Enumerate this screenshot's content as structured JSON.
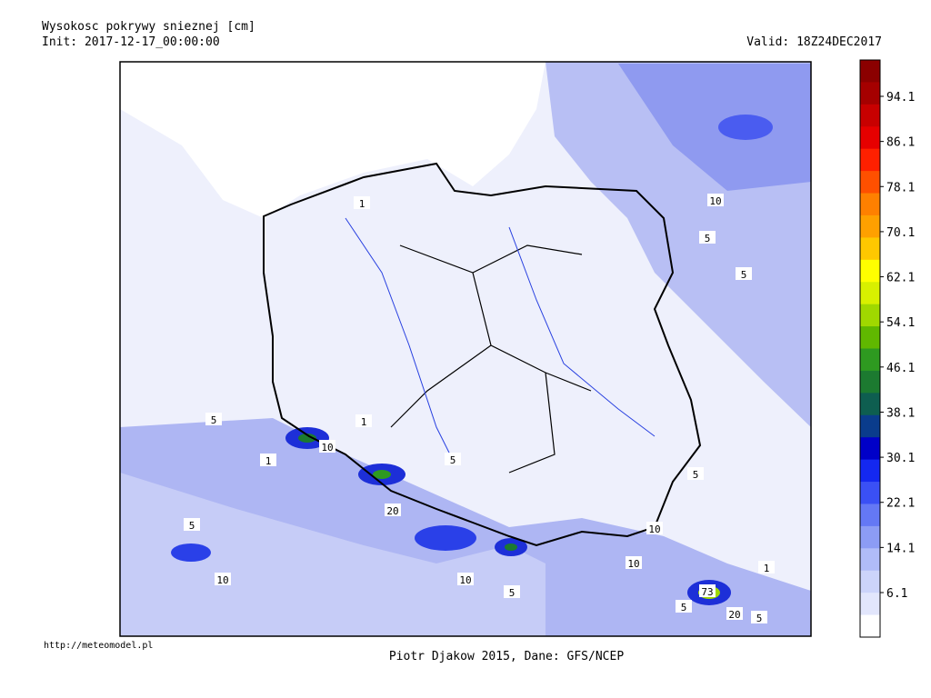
{
  "header": {
    "title": "Wysokosc pokrywy snieznej [cm]",
    "init": "Init: 2017-12-17_00:00:00",
    "valid": "Valid: 18Z24DEC2017"
  },
  "colorbar": {
    "ticks": [
      94.1,
      86.1,
      78.1,
      70.1,
      62.1,
      54.1,
      46.1,
      38.1,
      30.1,
      22.1,
      14.1,
      6.1
    ],
    "colors": [
      "#8b0000",
      "#a50000",
      "#c80000",
      "#e60000",
      "#ff2000",
      "#ff5000",
      "#ff8000",
      "#ffa000",
      "#ffc800",
      "#ffff00",
      "#d8f000",
      "#a0d800",
      "#60b800",
      "#2e9a20",
      "#1c7a30",
      "#0e5e50",
      "#0a3c8c",
      "#0000c8",
      "#1428f0",
      "#3a50f5",
      "#6478f5",
      "#8c9cf5",
      "#b0bcf8",
      "#ccd4fa",
      "#e2e6fc",
      "#ffffff"
    ]
  },
  "contour_labels": [
    "5",
    "5",
    "5",
    "5",
    "5",
    "5",
    "5",
    "5",
    "5",
    "10",
    "10",
    "10",
    "10",
    "10",
    "10",
    "20",
    "20",
    "73",
    "1",
    "1",
    "1",
    "1"
  ],
  "footer": {
    "url": "http://meteomodel.pl",
    "credit": "Piotr Djakow 2015, Dane: GFS/NCEP"
  }
}
